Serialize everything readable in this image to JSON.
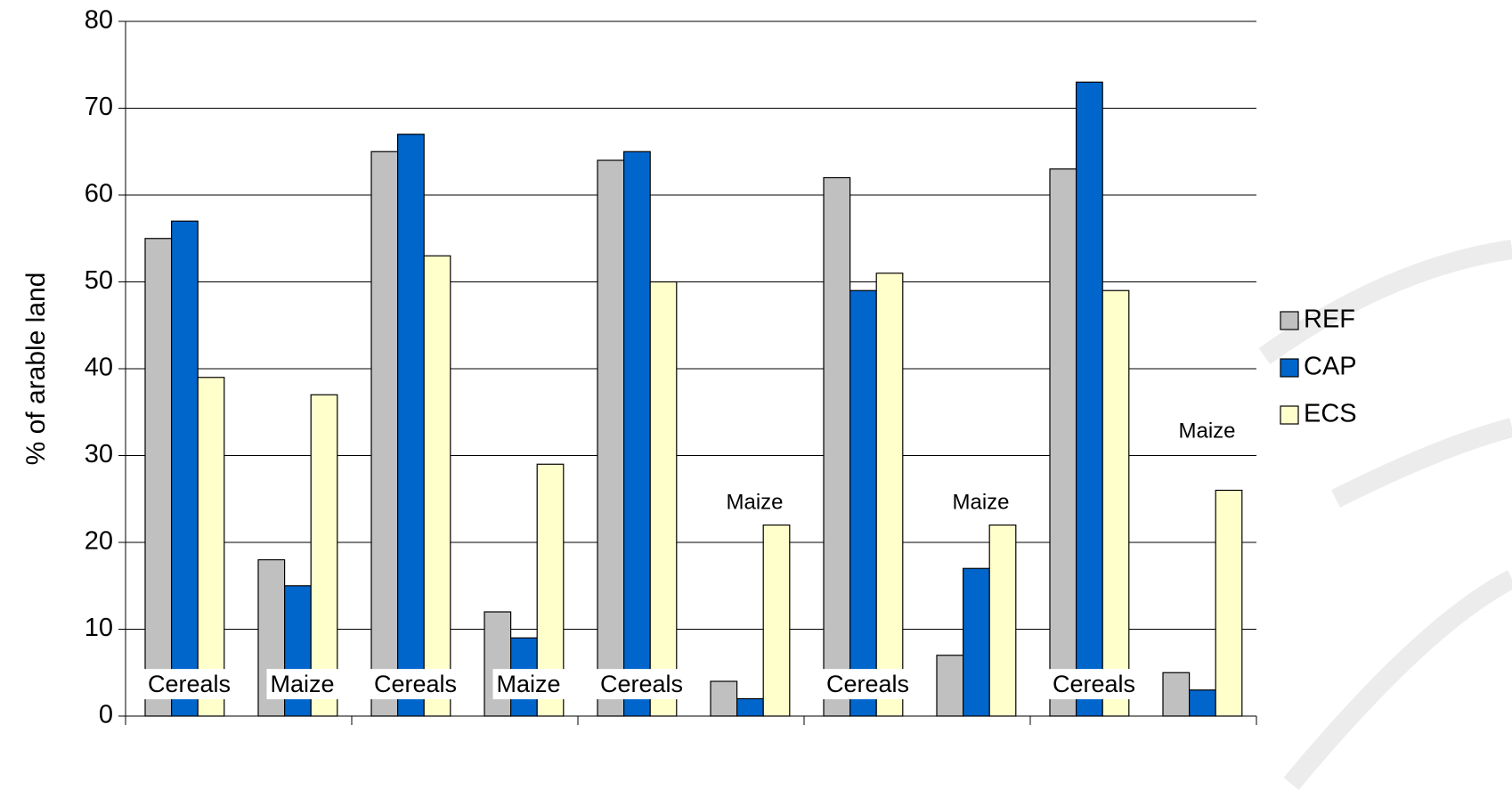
{
  "chart_data": {
    "type": "bar",
    "y_label": "% of arable land",
    "categories": [
      "Cereals",
      "Maize",
      "Cereals",
      "Maize",
      "Cereals",
      "Maize",
      "Cereals",
      "Maize",
      "Cereals",
      "Maize"
    ],
    "series": [
      {
        "name": "REF",
        "color": "#c0c0c0",
        "values": [
          55,
          18,
          65,
          12,
          64,
          4,
          62,
          7,
          63,
          5
        ]
      },
      {
        "name": "CAP",
        "color": "#0066cc",
        "values": [
          57,
          15,
          67,
          9,
          65,
          2,
          49,
          17,
          73,
          3
        ]
      },
      {
        "name": "ECS",
        "color": "#ffffcc",
        "values": [
          39,
          37,
          53,
          29,
          50,
          22,
          51,
          22,
          49,
          26
        ]
      }
    ],
    "ylim": [
      0,
      80
    ],
    "yticks": [
      0,
      10,
      20,
      30,
      40,
      50,
      60,
      70,
      80
    ],
    "grid": true,
    "legend": "right"
  }
}
